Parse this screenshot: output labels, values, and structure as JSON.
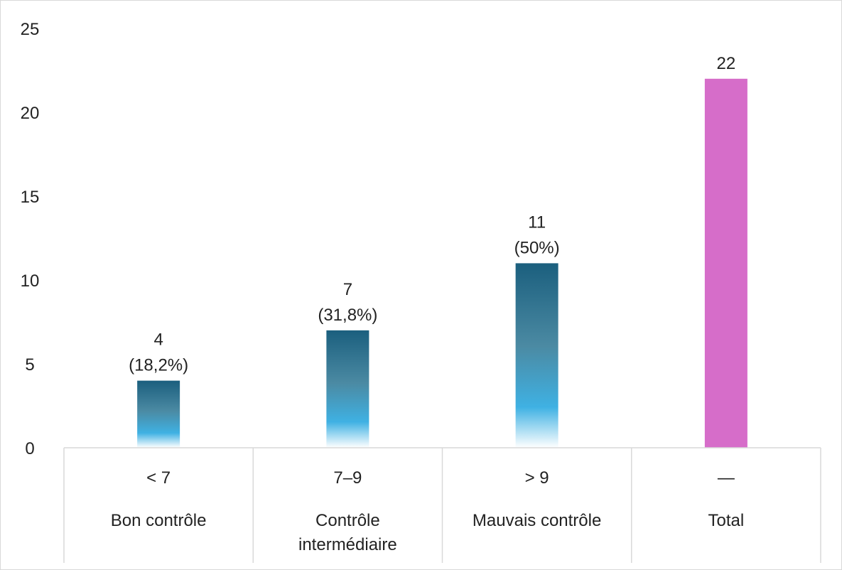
{
  "chart_data": {
    "type": "bar",
    "y_ticks": [
      "0",
      "5",
      "10",
      "15",
      "20",
      "25"
    ],
    "ylim": [
      0,
      25
    ],
    "grid": false,
    "categories": [
      {
        "code": "< 7",
        "label": [
          "Bon contrôle"
        ]
      },
      {
        "code": "7–9",
        "label": [
          "Contrôle",
          "intermédiaire"
        ]
      },
      {
        "code": "> 9",
        "label": [
          "Mauvais contrôle"
        ]
      },
      {
        "code": "—",
        "label": [
          "Total"
        ]
      }
    ],
    "values": [
      4,
      7,
      11,
      22
    ],
    "data_labels": [
      [
        "4",
        "(18,2%)"
      ],
      [
        "7",
        "(31,8%)"
      ],
      [
        "11",
        "(50%)"
      ],
      [
        "22"
      ]
    ],
    "bar_styles": [
      "gradient",
      "gradient",
      "gradient",
      "solid"
    ],
    "colors": {
      "gradient_top": "#1b5f7e",
      "gradient_mid": "#4b8aa3",
      "gradient_light": "#3fb1e3",
      "gradient_bottom": "#ffffff",
      "total_bar": "#d66dc9",
      "axis_line": "#d9d9d9"
    }
  }
}
